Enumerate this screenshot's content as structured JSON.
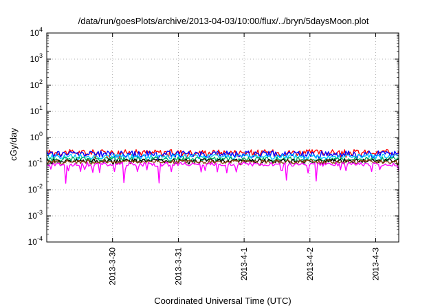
{
  "chart_data": {
    "type": "line",
    "title": "/data/run/goesPlots/archive/2013-04-03/10:00/flux/../bryn/5daysMoon.plot",
    "xlabel": "Coordinated Universal Time (UTC)",
    "ylabel": "cGy/day",
    "yscale": "log",
    "ylim": [
      0.0001,
      10000
    ],
    "xlim": [
      0,
      5.35
    ],
    "grid": true,
    "y_ticks": [
      {
        "value": 0.0001,
        "base": "10",
        "exp": "-4"
      },
      {
        "value": 0.001,
        "base": "10",
        "exp": "-3"
      },
      {
        "value": 0.01,
        "base": "10",
        "exp": "-2"
      },
      {
        "value": 0.1,
        "base": "10",
        "exp": "-1"
      },
      {
        "value": 1,
        "base": "10",
        "exp": "0"
      },
      {
        "value": 10,
        "base": "10",
        "exp": "1"
      },
      {
        "value": 100,
        "base": "10",
        "exp": "2"
      },
      {
        "value": 1000,
        "base": "10",
        "exp": "3"
      },
      {
        "value": 10000,
        "base": "10",
        "exp": "4"
      }
    ],
    "x_ticks": [
      {
        "value": 1.0,
        "label": "2013-3-30"
      },
      {
        "value": 2.0,
        "label": "2013-3-31"
      },
      {
        "value": 3.0,
        "label": "2013-4-1"
      },
      {
        "value": 4.0,
        "label": "2013-4-2"
      },
      {
        "value": 5.0,
        "label": "2013-4-3"
      }
    ],
    "series": [
      {
        "color": "#ff0000",
        "base": 0.27,
        "amp": 0.55,
        "dip": 0.55
      },
      {
        "color": "#0000ff",
        "base": 0.24,
        "amp": 0.55,
        "dip": 0.6
      },
      {
        "color": "#00c8ff",
        "base": 0.19,
        "amp": 0.45,
        "dip": 0.5
      },
      {
        "color": "#00b060",
        "base": 0.15,
        "amp": 0.4,
        "dip": 0.45
      },
      {
        "color": "#000000",
        "base": 0.13,
        "amp": 0.35,
        "dip": 0.4
      },
      {
        "color": "#8b4513",
        "base": 0.12,
        "amp": 0.35,
        "dip": 0.4
      },
      {
        "color": "#ff00ff",
        "base": 0.095,
        "amp": 0.35,
        "dip": 1.0
      }
    ]
  }
}
